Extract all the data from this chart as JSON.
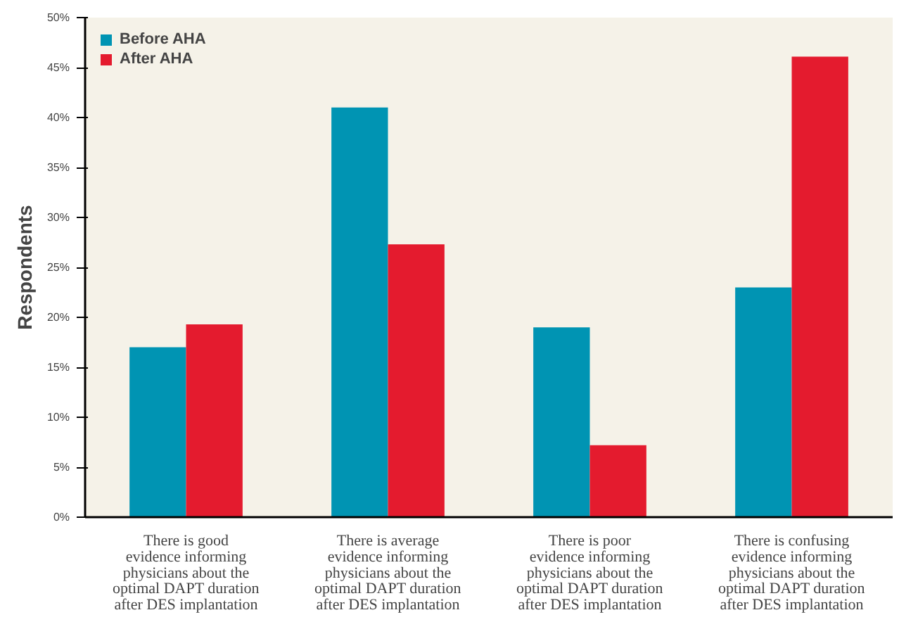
{
  "chart_data": {
    "type": "bar",
    "ylabel": "Respondents",
    "categories": [
      "There is good\nevidence informing\nphysicians about the\noptimal DAPT duration\nafter DES implantation",
      "There is average\nevidence informing\nphysicians about the\noptimal DAPT duration\nafter DES implantation",
      "There is poor\nevidence informing\nphysicians about the\noptimal DAPT duration\nafter DES implantation",
      "There is confusing\nevidence informing\nphysicians about the\noptimal DAPT duration\nafter DES implantation"
    ],
    "series": [
      {
        "name": "Before AHA",
        "color": "#0094b3",
        "values": [
          17,
          41,
          19,
          23
        ]
      },
      {
        "name": "After AHA",
        "color": "#e41b2e",
        "values": [
          19.3,
          27.3,
          7.2,
          46.1
        ]
      }
    ],
    "ylim": [
      0,
      50
    ],
    "yticks": [
      {
        "value": 0,
        "label": "0%"
      },
      {
        "value": 5,
        "label": "5%"
      },
      {
        "value": 10,
        "label": "10%"
      },
      {
        "value": 15,
        "label": "15%"
      },
      {
        "value": 20,
        "label": "20%"
      },
      {
        "value": 25,
        "label": "25%"
      },
      {
        "value": 30,
        "label": "30%"
      },
      {
        "value": 35,
        "label": "35%"
      },
      {
        "value": 40,
        "label": "40%"
      },
      {
        "value": 45,
        "label": "45%"
      },
      {
        "value": 50,
        "label": "50%"
      }
    ],
    "grid": false,
    "legend": "top left"
  }
}
